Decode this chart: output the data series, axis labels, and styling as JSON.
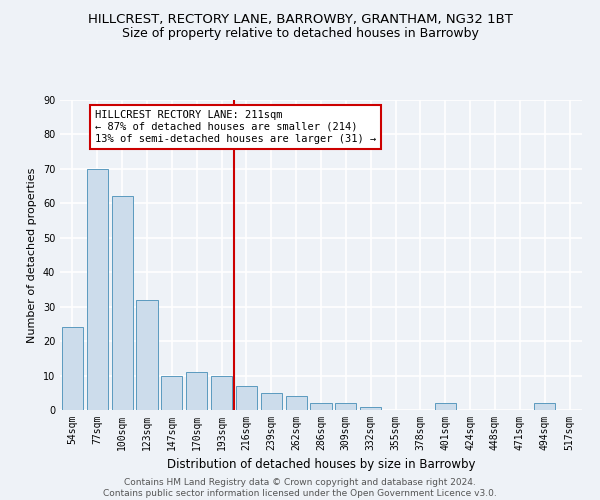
{
  "title": "HILLCREST, RECTORY LANE, BARROWBY, GRANTHAM, NG32 1BT",
  "subtitle": "Size of property relative to detached houses in Barrowby",
  "xlabel": "Distribution of detached houses by size in Barrowby",
  "ylabel": "Number of detached properties",
  "bar_labels": [
    "54sqm",
    "77sqm",
    "100sqm",
    "123sqm",
    "147sqm",
    "170sqm",
    "193sqm",
    "216sqm",
    "239sqm",
    "262sqm",
    "286sqm",
    "309sqm",
    "332sqm",
    "355sqm",
    "378sqm",
    "401sqm",
    "424sqm",
    "448sqm",
    "471sqm",
    "494sqm",
    "517sqm"
  ],
  "bar_values": [
    24,
    70,
    62,
    32,
    10,
    11,
    10,
    7,
    5,
    4,
    2,
    2,
    1,
    0,
    0,
    2,
    0,
    0,
    0,
    2,
    0
  ],
  "bar_color": "#ccdceb",
  "bar_edge_color": "#5a9abf",
  "annotation_label": "HILLCREST RECTORY LANE: 211sqm",
  "annotation_line1": "← 87% of detached houses are smaller (214)",
  "annotation_line2": "13% of semi-detached houses are larger (31) →",
  "annotation_box_color": "#cc0000",
  "vline_color": "#cc0000",
  "vline_x_index": 6.5,
  "ylim": [
    0,
    90
  ],
  "yticks": [
    0,
    10,
    20,
    30,
    40,
    50,
    60,
    70,
    80,
    90
  ],
  "background_color": "#eef2f7",
  "grid_color": "#ffffff",
  "footer": "Contains HM Land Registry data © Crown copyright and database right 2024.\nContains public sector information licensed under the Open Government Licence v3.0.",
  "title_fontsize": 9.5,
  "subtitle_fontsize": 9,
  "xlabel_fontsize": 8.5,
  "ylabel_fontsize": 8,
  "tick_fontsize": 7,
  "annotation_fontsize": 7.5,
  "footer_fontsize": 6.5
}
